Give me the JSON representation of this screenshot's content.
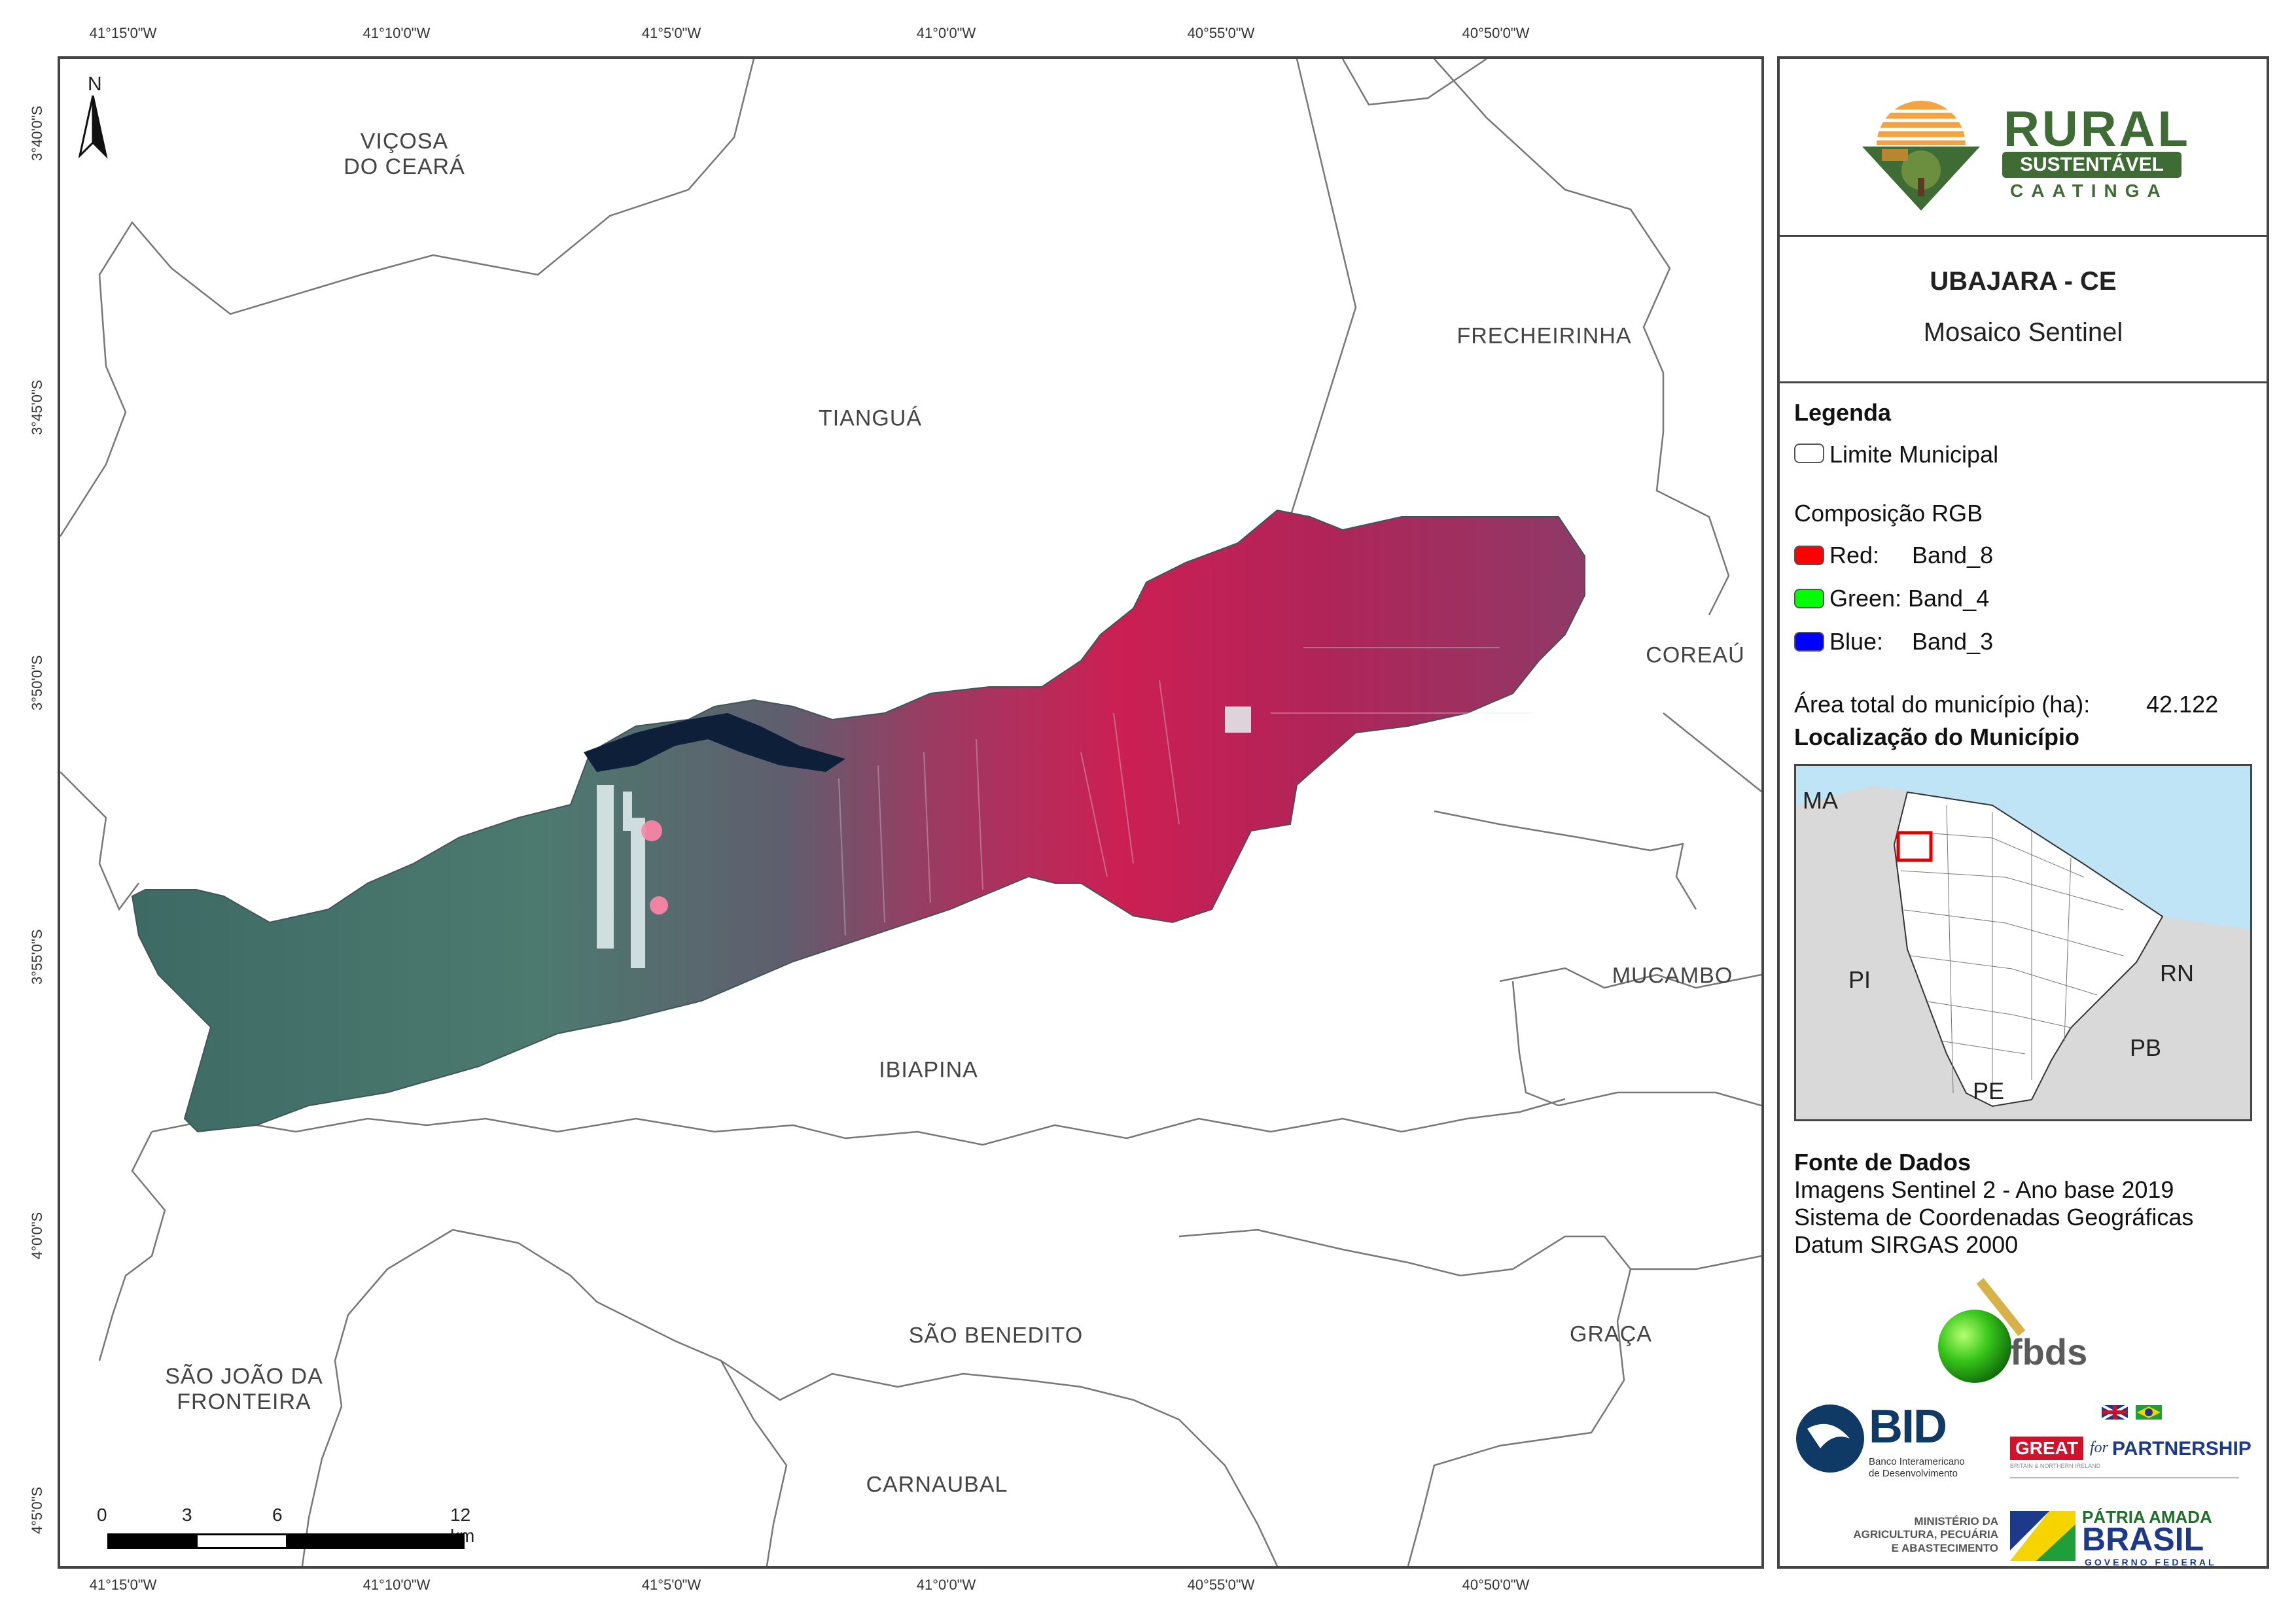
{
  "map": {
    "north_arrow_label": "N",
    "lon_ticks": [
      "41°15'0\"W",
      "41°10'0\"W",
      "41°5'0\"W",
      "41°0'0\"W",
      "40°55'0\"W",
      "40°50'0\"W"
    ],
    "lat_ticks": [
      "3°40'0\"S",
      "3°45'0\"S",
      "3°50'0\"S",
      "3°55'0\"S",
      "4°0'0\"S",
      "4°5'0\"S"
    ],
    "municipalities": [
      {
        "name": "VIÇOSA\nDO CEARÁ"
      },
      {
        "name": "FRECHEIRINHA"
      },
      {
        "name": "TIANGUÁ"
      },
      {
        "name": "COREAÚ"
      },
      {
        "name": "MUCAMBO"
      },
      {
        "name": "IBIAPINA"
      },
      {
        "name": "SÃO BENEDITO"
      },
      {
        "name": "GRAÇA"
      },
      {
        "name": "SÃO JOÃO DA\nFRONTEIRA"
      },
      {
        "name": "CARNAUBAL"
      }
    ],
    "scale_bar": {
      "labels": [
        "0",
        "3",
        "6",
        "12 km"
      ]
    }
  },
  "panel": {
    "logo": {
      "line1": "RURAL",
      "line2": "SUSTENTÁVEL",
      "line3": "CAATINGA"
    },
    "title": "UBAJARA - CE",
    "subtitle": "Mosaico Sentinel",
    "legend": {
      "heading": "Legenda",
      "boundary_label": "Limite Municipal",
      "rgb_heading": "Composição RGB",
      "bands": [
        {
          "label": "Red:",
          "band": "Band_8",
          "color": "#ff0000"
        },
        {
          "label": "Green:",
          "band": "Band_4",
          "color": "#00ff00"
        },
        {
          "label": "Blue:",
          "band": "Band_3",
          "color": "#0000ff"
        }
      ],
      "area_text": "Área total do município (ha):",
      "area_value": "42.122"
    },
    "location": {
      "heading": "Localização do Município",
      "states": [
        "MA",
        "PI",
        "RN",
        "PB",
        "PE"
      ]
    },
    "sources": {
      "heading": "Fonte de Dados",
      "lines": [
        "Imagens Sentinel 2 - Ano base 2019",
        "Sistema de Coordenadas Geográficas",
        "Datum SIRGAS 2000"
      ]
    },
    "logos": {
      "fbds": "fbds",
      "bid": "BID",
      "bid_sub": "Banco Interamericano\nde Desenvolvimento",
      "great": "GREAT",
      "great_for": "for",
      "great_partnership": "PARTNERSHIP",
      "great_sub": "BRITAIN & NORTHERN IRELAND",
      "ministry": "MINISTÉRIO DA\nAGRICULTURA, PECUÁRIA\nE ABASTECIMENTO",
      "patria": "PÁTRIA AMADA",
      "brasil": "BRASIL",
      "governo": "GOVERNO FEDERAL"
    }
  }
}
